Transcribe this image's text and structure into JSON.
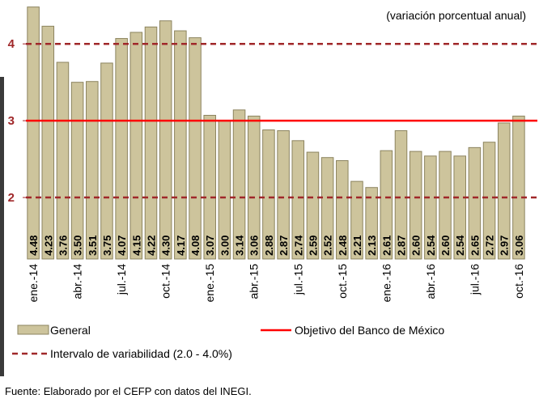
{
  "chart_data": {
    "type": "bar",
    "subtitle": "(variación porcentual anual)",
    "source": "Fuente: Elaborado por el CEFP con datos del INEGI.",
    "categories": [
      "ene.-14",
      null,
      null,
      "abr.-14",
      null,
      null,
      "jul.-14",
      null,
      null,
      "oct.-14",
      null,
      null,
      "ene.-15",
      null,
      null,
      "abr.-15",
      null,
      null,
      "jul.-15",
      null,
      null,
      "oct.-15",
      null,
      null,
      "ene.-16",
      null,
      null,
      "abr.-16",
      null,
      null,
      "jul.-16",
      null,
      null,
      "oct.-16"
    ],
    "series": [
      {
        "name": "General",
        "color": "#cdc49c",
        "values": [
          4.48,
          4.23,
          3.76,
          3.5,
          3.51,
          3.75,
          4.07,
          4.15,
          4.22,
          4.3,
          4.17,
          4.08,
          3.07,
          3.0,
          3.14,
          3.06,
          2.88,
          2.87,
          2.74,
          2.59,
          2.52,
          2.48,
          2.21,
          2.13,
          2.61,
          2.87,
          2.6,
          2.54,
          2.6,
          2.54,
          2.65,
          2.72,
          2.97,
          3.06
        ],
        "value_labels": [
          "4.48",
          "4.23",
          "3.76",
          "3.50",
          "3.51",
          "3.75",
          "4.07",
          "4.15",
          "4.22",
          "4.30",
          "4.17",
          "4.08",
          "3.07",
          "3.00",
          "3.14",
          "3.06",
          "2.88",
          "2.87",
          "2.74",
          "2.59",
          "2.52",
          "2.48",
          "2.21",
          "2.13",
          "2.61",
          "2.87",
          "2.60",
          "2.54",
          "2.60",
          "2.54",
          "2.65",
          "2.72",
          "2.97",
          "3.06"
        ]
      }
    ],
    "reference_lines": [
      {
        "name": "Objetivo del Banco de México",
        "color": "#ff0000",
        "dashed": false,
        "values": [
          3
        ]
      },
      {
        "name": "Intervalo de variabilidad (2.0 - 4.0%)",
        "color": "#a0282a",
        "dashed": true,
        "values": [
          2,
          4
        ]
      }
    ],
    "ylim": [
      1.2,
      4.55
    ],
    "yticks": [
      2,
      3,
      4
    ],
    "grid": false
  }
}
